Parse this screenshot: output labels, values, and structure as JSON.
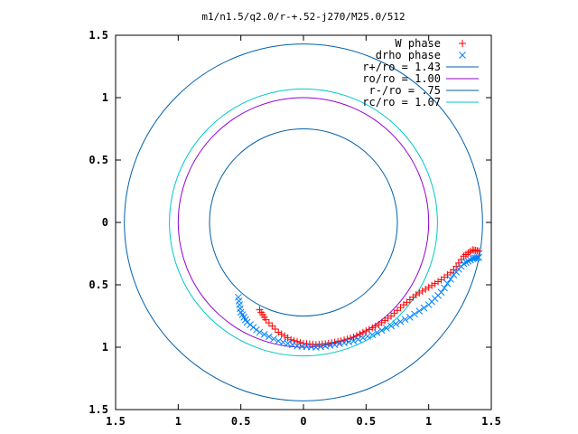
{
  "chart_data": {
    "type": "scatter",
    "title": "m1/n1.5/q2.0/r-+.52-j270/M25.0/512",
    "xlim": [
      -1.5,
      1.5
    ],
    "ylim": [
      -1.5,
      1.5
    ],
    "x_ticks": [
      -1.5,
      -1,
      -0.5,
      0,
      0.5,
      1,
      1.5
    ],
    "y_ticks": [
      -1.5,
      -1,
      -0.5,
      0,
      0.5,
      1,
      1.5
    ],
    "x_tick_labels": [
      "1.5",
      "1",
      "0.5",
      "0",
      "0.5",
      "1",
      "1.5"
    ],
    "y_tick_labels": [
      "1.5",
      "1",
      "0.5",
      "0",
      "0.5",
      "1",
      "1.5"
    ],
    "grid": false,
    "legend_position": "top-right",
    "series": [
      {
        "name": "W phase",
        "kind": "markers",
        "marker": "+",
        "color": "#ff0000",
        "points": [
          [
            -0.35,
            -0.7
          ],
          [
            -0.3,
            -0.78
          ],
          [
            -0.2,
            -0.88
          ],
          [
            -0.1,
            -0.94
          ],
          [
            0.0,
            -0.97
          ],
          [
            0.1,
            -0.98
          ],
          [
            0.2,
            -0.97
          ],
          [
            0.3,
            -0.95
          ],
          [
            0.4,
            -0.92
          ],
          [
            0.5,
            -0.87
          ],
          [
            0.6,
            -0.82
          ],
          [
            0.7,
            -0.75
          ],
          [
            0.8,
            -0.66
          ],
          [
            0.9,
            -0.58
          ],
          [
            1.0,
            -0.52
          ],
          [
            1.1,
            -0.46
          ],
          [
            1.2,
            -0.38
          ],
          [
            1.28,
            -0.27
          ],
          [
            1.35,
            -0.22
          ],
          [
            1.4,
            -0.23
          ]
        ]
      },
      {
        "name": "drho phase",
        "kind": "markers",
        "marker": "x",
        "color": "#0080ff",
        "points": [
          [
            -0.52,
            -0.6
          ],
          [
            -0.5,
            -0.72
          ],
          [
            -0.45,
            -0.8
          ],
          [
            -0.35,
            -0.88
          ],
          [
            -0.2,
            -0.95
          ],
          [
            -0.05,
            -0.99
          ],
          [
            0.1,
            -1.0
          ],
          [
            0.25,
            -0.98
          ],
          [
            0.4,
            -0.95
          ],
          [
            0.55,
            -0.9
          ],
          [
            0.7,
            -0.83
          ],
          [
            0.85,
            -0.76
          ],
          [
            1.0,
            -0.66
          ],
          [
            1.1,
            -0.56
          ],
          [
            1.2,
            -0.42
          ],
          [
            1.28,
            -0.33
          ],
          [
            1.35,
            -0.29
          ],
          [
            1.4,
            -0.28
          ]
        ]
      },
      {
        "name": "r+/ro = 1.43",
        "kind": "circle",
        "radius": 1.43,
        "color": "#0060ad"
      },
      {
        "name": "ro/ro = 1.00",
        "kind": "circle",
        "radius": 1.0,
        "color": "#9400d3"
      },
      {
        "name": "r-/ro = .75",
        "kind": "circle",
        "radius": 0.75,
        "color": "#0060ad"
      },
      {
        "name": "rc/ro = 1.07",
        "kind": "circle",
        "radius": 1.07,
        "color": "#00c8c8"
      }
    ]
  }
}
